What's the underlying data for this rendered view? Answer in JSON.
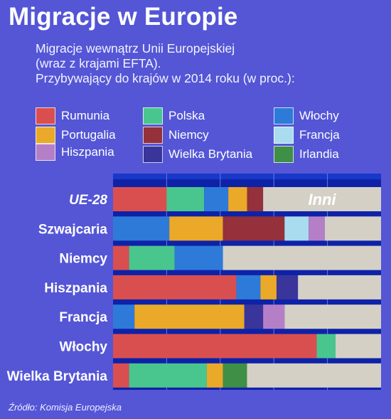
{
  "header": {
    "title": "Migracje w Europie",
    "subtitle_lines": [
      "Migracje wewnątrz Unii Europejskiej",
      "(wraz z krajami EFTA).",
      "Przybywający do krajów w 2014 roku (w proc.):"
    ]
  },
  "legend": [
    {
      "label": "Rumunia",
      "color": "#d94f50"
    },
    {
      "label": "Portugalia",
      "color": "#eaa928"
    },
    {
      "label": "Hiszpania",
      "color": "#b57fc8"
    },
    {
      "label": "Polska",
      "color": "#49c68e"
    },
    {
      "label": "Niemcy",
      "color": "#94313a"
    },
    {
      "label": "Wielka Brytania",
      "color": "#39359a"
    },
    {
      "label": "Włochy",
      "color": "#2e7ad9"
    },
    {
      "label": "Francja",
      "color": "#a9dcef"
    },
    {
      "label": "Irlandia",
      "color": "#3f8f46"
    }
  ],
  "chart_data": {
    "type": "bar",
    "orientation": "horizontal",
    "stacked": true,
    "unit": "%",
    "xlim": [
      0,
      100
    ],
    "categories": [
      "UE-28",
      "Szwajcaria",
      "Niemcy",
      "Hiszpania",
      "Francja",
      "Włochy",
      "Wielka Brytania"
    ],
    "series": [
      {
        "name": "Rumunia",
        "color": "#d94f50",
        "values": [
          20,
          0,
          6,
          46,
          0,
          76,
          6
        ]
      },
      {
        "name": "Polska",
        "color": "#49c68e",
        "values": [
          14,
          0,
          17,
          0,
          0,
          7,
          29
        ]
      },
      {
        "name": "Włochy",
        "color": "#2e7ad9",
        "values": [
          9,
          21,
          18,
          9,
          8,
          0,
          0
        ]
      },
      {
        "name": "Portugalia",
        "color": "#eaa928",
        "values": [
          7,
          20,
          0,
          6,
          41,
          0,
          6
        ]
      },
      {
        "name": "Niemcy",
        "color": "#94313a",
        "values": [
          6,
          23,
          0,
          0,
          0,
          0,
          0
        ]
      },
      {
        "name": "Wielka Brytania",
        "color": "#39359a",
        "values": [
          0,
          0,
          0,
          8,
          7,
          0,
          0
        ]
      },
      {
        "name": "Francja",
        "color": "#a9dcef",
        "values": [
          0,
          9,
          0,
          0,
          0,
          0,
          0
        ]
      },
      {
        "name": "Hiszpania",
        "color": "#b57fc8",
        "values": [
          0,
          6,
          0,
          0,
          8,
          0,
          0
        ]
      },
      {
        "name": "Irlandia",
        "color": "#3f8f46",
        "values": [
          0,
          0,
          0,
          0,
          0,
          0,
          9
        ]
      },
      {
        "name": "Inni",
        "color": "#d5d0c6",
        "values": [
          44,
          21,
          59,
          31,
          36,
          17,
          50
        ]
      }
    ],
    "annotations": [
      {
        "category": "UE-28",
        "series": "Inni",
        "text": "Inni"
      }
    ],
    "gridlines": true
  },
  "source": "Źródło: Komisja Europejska"
}
